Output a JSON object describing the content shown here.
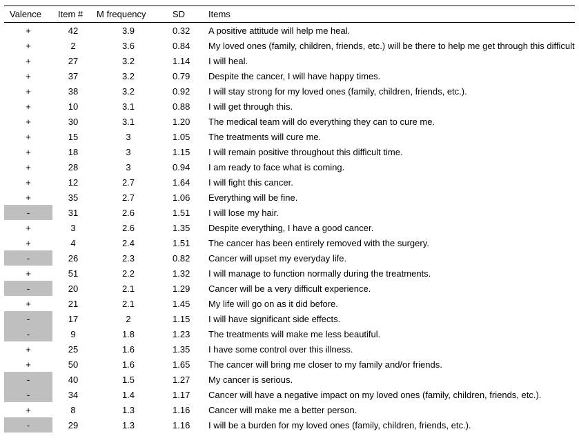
{
  "table": {
    "headers": {
      "valence": "Valence",
      "item_no": "Item #",
      "m_freq": "M frequency",
      "sd": "SD",
      "items": "Items"
    },
    "neg_bg": "#bfbfbf",
    "rows": [
      {
        "valence": "+",
        "item": "42",
        "mfreq": "3.9",
        "sd": "0.32",
        "text": "A positive attitude will help me heal."
      },
      {
        "valence": "+",
        "item": "2",
        "mfreq": "3.6",
        "sd": "0.84",
        "text": "My loved ones (family, children, friends, etc.) will be there to help me get through this difficult time."
      },
      {
        "valence": "+",
        "item": "27",
        "mfreq": "3.2",
        "sd": "1.14",
        "text": "I will heal."
      },
      {
        "valence": "+",
        "item": "37",
        "mfreq": "3.2",
        "sd": "0.79",
        "text": "Despite the cancer, I will have happy times."
      },
      {
        "valence": "+",
        "item": "38",
        "mfreq": "3.2",
        "sd": "0.92",
        "text": "I will stay strong for my loved ones (family, children, friends, etc.)."
      },
      {
        "valence": "+",
        "item": "10",
        "mfreq": "3.1",
        "sd": "0.88",
        "text": "I will get through this."
      },
      {
        "valence": "+",
        "item": "30",
        "mfreq": "3.1",
        "sd": "1.20",
        "text": "The medical team will do everything they can to cure me."
      },
      {
        "valence": "+",
        "item": "15",
        "mfreq": "3",
        "sd": "1.05",
        "text": "The treatments will cure me."
      },
      {
        "valence": "+",
        "item": "18",
        "mfreq": "3",
        "sd": "1.15",
        "text": "I will remain positive throughout this difficult time."
      },
      {
        "valence": "+",
        "item": "28",
        "mfreq": "3",
        "sd": "0.94",
        "text": "I am ready to face what is coming."
      },
      {
        "valence": "+",
        "item": "12",
        "mfreq": "2.7",
        "sd": "1.64",
        "text": "I will fight this cancer."
      },
      {
        "valence": "+",
        "item": "35",
        "mfreq": "2.7",
        "sd": "1.06",
        "text": "Everything will be fine."
      },
      {
        "valence": "-",
        "item": "31",
        "mfreq": "2.6",
        "sd": "1.51",
        "text": "I will lose my hair."
      },
      {
        "valence": "+",
        "item": "3",
        "mfreq": "2.6",
        "sd": "1.35",
        "text": "Despite everything, I have a good cancer."
      },
      {
        "valence": "+",
        "item": "4",
        "mfreq": "2.4",
        "sd": "1.51",
        "text": "The cancer has been entirely removed with the surgery."
      },
      {
        "valence": "-",
        "item": "26",
        "mfreq": "2.3",
        "sd": "0.82",
        "text": "Cancer will upset my everyday life."
      },
      {
        "valence": "+",
        "item": "51",
        "mfreq": "2.2",
        "sd": "1.32",
        "text": "I will manage to function normally during the treatments."
      },
      {
        "valence": "-",
        "item": "20",
        "mfreq": "2.1",
        "sd": "1.29",
        "text": "Cancer will be a very difficult experience."
      },
      {
        "valence": "+",
        "item": "21",
        "mfreq": "2.1",
        "sd": "1.45",
        "text": "My life will go on as it did before."
      },
      {
        "valence": "-",
        "item": "17",
        "mfreq": "2",
        "sd": "1.15",
        "text": "I will have significant side effects."
      },
      {
        "valence": "-",
        "item": "9",
        "mfreq": "1.8",
        "sd": "1.23",
        "text": "The treatments will make me less beautiful."
      },
      {
        "valence": "+",
        "item": "25",
        "mfreq": "1.6",
        "sd": "1.35",
        "text": "I have some control over this illness."
      },
      {
        "valence": "+",
        "item": "50",
        "mfreq": "1.6",
        "sd": "1.65",
        "text": "The cancer will bring me closer to my family and/or friends."
      },
      {
        "valence": "-",
        "item": "40",
        "mfreq": "1.5",
        "sd": "1.27",
        "text": "My cancer is serious."
      },
      {
        "valence": "-",
        "item": "34",
        "mfreq": "1.4",
        "sd": "1.17",
        "text": "Cancer will have a negative impact on my loved ones (family, children, friends, etc.)."
      },
      {
        "valence": "+",
        "item": "8",
        "mfreq": "1.3",
        "sd": "1.16",
        "text": "Cancer will make me a better person."
      },
      {
        "valence": "-",
        "item": "29",
        "mfreq": "1.3",
        "sd": "1.16",
        "text": "I will be a burden for my loved ones (family, children, friends, etc.)."
      }
    ]
  }
}
